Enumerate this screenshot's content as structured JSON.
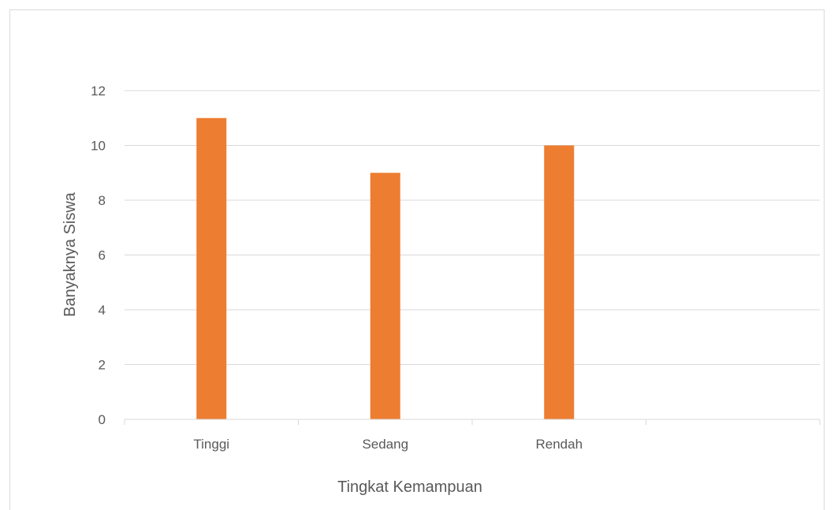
{
  "chart_data": {
    "type": "bar",
    "title": "",
    "categories": [
      "Tinggi",
      "Sedang",
      "Rendah",
      ""
    ],
    "series": [
      {
        "values": [
          11,
          9,
          10,
          null
        ]
      }
    ],
    "xlabel": "Tingkat Kemampuan",
    "ylabel": "Banyaknya Siswa",
    "ylim": [
      0,
      12
    ],
    "yticks": [
      0,
      2,
      4,
      6,
      8,
      10,
      12
    ],
    "grid": true,
    "legend": "none",
    "colors": {
      "bar": "#ED7D31",
      "grid": "#d9d9d9",
      "text": "#595959"
    }
  }
}
